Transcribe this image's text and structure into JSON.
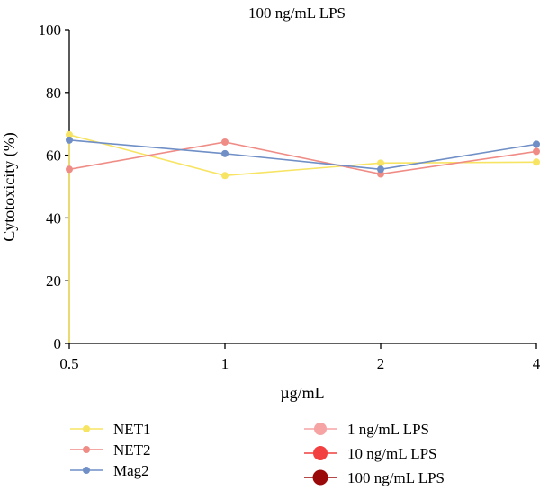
{
  "chart_data": {
    "type": "line",
    "title": "100 ng/mL LPS",
    "xlabel": "µg/mL",
    "ylabel": "Cytotoxicity (%)",
    "x": [
      "0.5",
      "1",
      "2",
      "4"
    ],
    "ylim": [
      0,
      100
    ],
    "yticks": [
      0,
      20,
      40,
      60,
      80,
      100
    ],
    "grid": false,
    "legend_position": "bottom",
    "series": [
      {
        "name": "NET1",
        "color": "#f7e463",
        "values": [
          66.5,
          53.5,
          57.5,
          57.8
        ]
      },
      {
        "name": "NET2",
        "color": "#f08c86",
        "values": [
          55.5,
          64.2,
          54.0,
          61.2
        ]
      },
      {
        "name": "Mag2",
        "color": "#6f8fc6",
        "values": [
          64.8,
          60.5,
          55.5,
          63.5
        ]
      }
    ],
    "annotation": {
      "color": "#f7e463",
      "values": [
        0,
        66.5
      ]
    },
    "size_legend": [
      {
        "label": "1 ng/mL LPS",
        "color": "#f5a3a3"
      },
      {
        "label": "10 ng/mL LPS",
        "color": "#f23f3f"
      },
      {
        "label": "100 ng/mL LPS",
        "color": "#9b0a0a"
      }
    ]
  }
}
